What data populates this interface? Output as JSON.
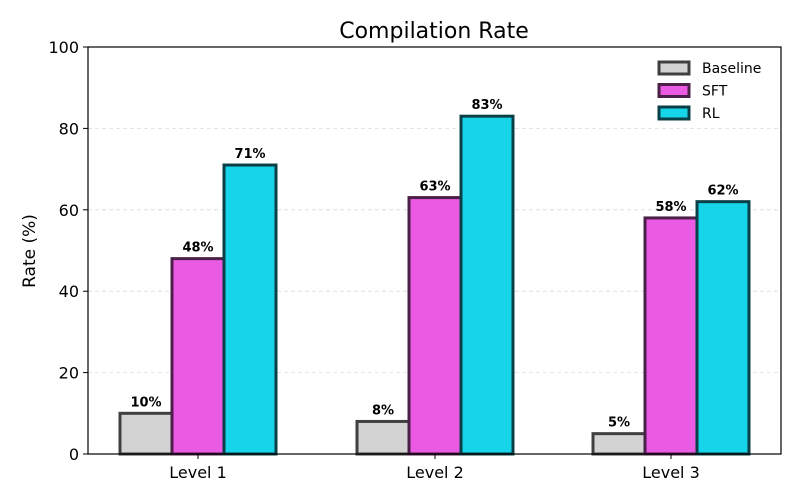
{
  "chart_data": {
    "type": "bar",
    "title": "Compilation Rate",
    "xlabel": "",
    "ylabel": "Rate (%)",
    "categories": [
      "Level 1",
      "Level 2",
      "Level 3"
    ],
    "ylim": [
      0,
      100
    ],
    "yticks": [
      "0",
      "20",
      "40",
      "60",
      "80",
      "100"
    ],
    "grid": "horizontal dashed",
    "legend_position": "top-right",
    "series": [
      {
        "name": "Baseline",
        "values": [
          10,
          8,
          5
        ],
        "labels": [
          "10%",
          "8%",
          "5%"
        ],
        "color": "#d3d3d3",
        "edge": "#404040"
      },
      {
        "name": "SFT",
        "values": [
          48,
          63,
          58
        ],
        "labels": [
          "48%",
          "63%",
          "58%"
        ],
        "color": "#ea5ae2",
        "edge": "#4a1f48"
      },
      {
        "name": "RL",
        "values": [
          71,
          83,
          62
        ],
        "labels": [
          "71%",
          "83%",
          "62%"
        ],
        "color": "#16d5e8",
        "edge": "#0b3f47"
      }
    ]
  }
}
